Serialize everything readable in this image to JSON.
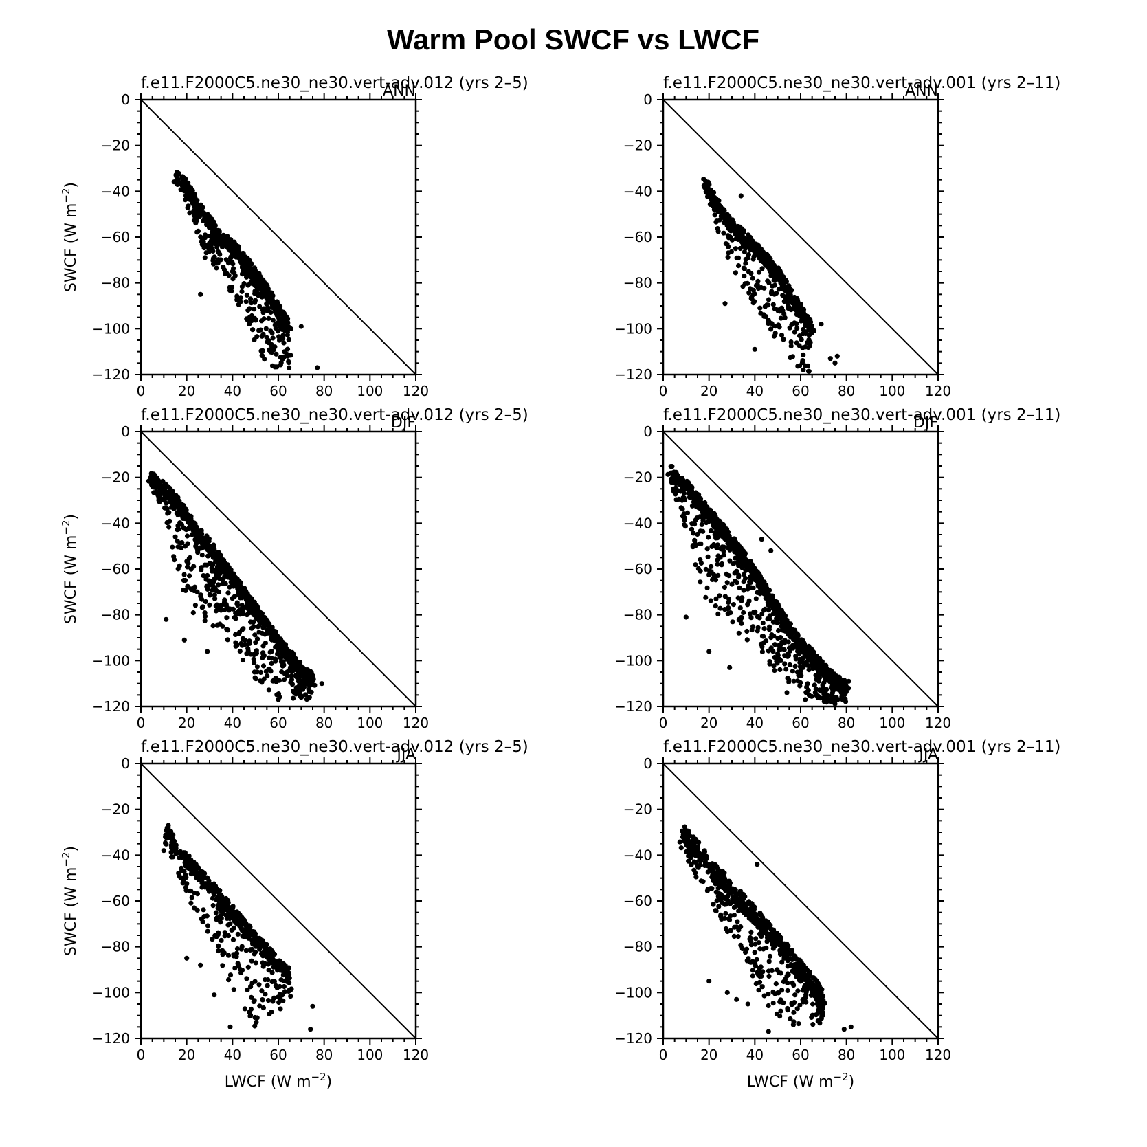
{
  "figure_title": "Warm Pool SWCF vs LWCF",
  "axis_labels": {
    "x": "LWCF (W m",
    "y": "SWCF (W m",
    "unit_exponent": "−2",
    "close": ")"
  },
  "chart_data": [
    {
      "type": "scatter",
      "title": "f.e11.F2000C5.ne30_ne30.vert-adv.012 (yrs 2–5)",
      "season": "ANN",
      "xlabel": "",
      "ylabel": "SWCF (W m−2)",
      "xlim": [
        0,
        120
      ],
      "ylim": [
        -120,
        0
      ],
      "x_ticks": [
        "0",
        "20",
        "40",
        "60",
        "80",
        "100",
        "120"
      ],
      "y_ticks": [
        "0",
        "−20",
        "−40",
        "−60",
        "−80",
        "−100",
        "−120"
      ],
      "reference_line": "y = -x",
      "cloud": {
        "spine": [
          [
            15,
            -33
          ],
          [
            20,
            -38
          ],
          [
            25,
            -47
          ],
          [
            30,
            -54
          ],
          [
            35,
            -60
          ],
          [
            40,
            -64
          ],
          [
            45,
            -70
          ],
          [
            50,
            -76
          ],
          [
            55,
            -84
          ],
          [
            60,
            -92
          ],
          [
            65,
            -100
          ]
        ],
        "below": [
          [
            15,
            3
          ],
          [
            20,
            8
          ],
          [
            25,
            14
          ],
          [
            30,
            16
          ],
          [
            35,
            18
          ],
          [
            40,
            22
          ],
          [
            45,
            26
          ],
          [
            50,
            30
          ],
          [
            55,
            32
          ],
          [
            60,
            28
          ],
          [
            65,
            20
          ]
        ],
        "above": 3,
        "count": 700
      },
      "outliers": [
        [
          26,
          -85
        ],
        [
          77,
          -117
        ],
        [
          70,
          -99
        ],
        [
          28,
          -69
        ]
      ]
    },
    {
      "type": "scatter",
      "title": "f.e11.F2000C5.ne30_ne30.vert-adv.001 (yrs 2–11)",
      "season": "ANN",
      "xlabel": "",
      "ylabel": "",
      "xlim": [
        0,
        120
      ],
      "ylim": [
        -120,
        0
      ],
      "x_ticks": [
        "0",
        "20",
        "40",
        "60",
        "80",
        "100",
        "120"
      ],
      "y_ticks": [
        "0",
        "−20",
        "−40",
        "−60",
        "−80",
        "−100",
        "−120"
      ],
      "reference_line": "y = -x",
      "cloud": {
        "spine": [
          [
            18,
            -36
          ],
          [
            22,
            -43
          ],
          [
            26,
            -50
          ],
          [
            30,
            -55
          ],
          [
            35,
            -60
          ],
          [
            40,
            -65
          ],
          [
            45,
            -70
          ],
          [
            50,
            -76
          ],
          [
            55,
            -84
          ],
          [
            60,
            -92
          ],
          [
            65,
            -100
          ]
        ],
        "below": [
          [
            18,
            3
          ],
          [
            22,
            8
          ],
          [
            26,
            14
          ],
          [
            30,
            18
          ],
          [
            35,
            22
          ],
          [
            40,
            26
          ],
          [
            45,
            28
          ],
          [
            50,
            30
          ],
          [
            55,
            30
          ],
          [
            60,
            26
          ],
          [
            65,
            20
          ]
        ],
        "above": 3,
        "count": 650
      },
      "outliers": [
        [
          27,
          -89
        ],
        [
          34,
          -42
        ],
        [
          40,
          -109
        ],
        [
          75,
          -115
        ],
        [
          76,
          -112
        ],
        [
          73,
          -113
        ],
        [
          69,
          -98
        ]
      ]
    },
    {
      "type": "scatter",
      "title": "f.e11.F2000C5.ne30_ne30.vert-adv.012 (yrs 2–5)",
      "season": "DJF",
      "xlabel": "",
      "ylabel": "SWCF (W m−2)",
      "xlim": [
        0,
        120
      ],
      "ylim": [
        -120,
        0
      ],
      "x_ticks": [
        "0",
        "20",
        "40",
        "60",
        "80",
        "100",
        "120"
      ],
      "y_ticks": [
        "0",
        "−20",
        "−40",
        "−60",
        "−80",
        "−100",
        "−120"
      ],
      "reference_line": "y = -x",
      "cloud": {
        "spine": [
          [
            4,
            -20
          ],
          [
            10,
            -25
          ],
          [
            15,
            -30
          ],
          [
            20,
            -37
          ],
          [
            25,
            -44
          ],
          [
            30,
            -50
          ],
          [
            35,
            -57
          ],
          [
            40,
            -64
          ],
          [
            45,
            -71
          ],
          [
            50,
            -78
          ],
          [
            55,
            -85
          ],
          [
            60,
            -92
          ],
          [
            65,
            -98
          ],
          [
            70,
            -104
          ],
          [
            75,
            -108
          ]
        ],
        "below": [
          [
            4,
            3
          ],
          [
            10,
            12
          ],
          [
            15,
            30
          ],
          [
            20,
            40
          ],
          [
            25,
            40
          ],
          [
            30,
            35
          ],
          [
            35,
            30
          ],
          [
            40,
            30
          ],
          [
            45,
            30
          ],
          [
            50,
            30
          ],
          [
            55,
            28
          ],
          [
            60,
            25
          ],
          [
            65,
            20
          ],
          [
            70,
            14
          ],
          [
            75,
            8
          ]
        ],
        "above": 3,
        "count": 1100
      },
      "outliers": [
        [
          11,
          -82
        ],
        [
          19,
          -91
        ],
        [
          29,
          -96
        ],
        [
          79,
          -110
        ],
        [
          60,
          -117
        ],
        [
          70,
          -116
        ]
      ]
    },
    {
      "type": "scatter",
      "title": "f.e11.F2000C5.ne30_ne30.vert-adv.001 (yrs 2–11)",
      "season": "DJF",
      "xlabel": "",
      "ylabel": "",
      "xlim": [
        0,
        120
      ],
      "ylim": [
        -120,
        0
      ],
      "x_ticks": [
        "0",
        "20",
        "40",
        "60",
        "80",
        "100",
        "120"
      ],
      "y_ticks": [
        "0",
        "−20",
        "−40",
        "−60",
        "−80",
        "−100",
        "−120"
      ],
      "reference_line": "y = -x",
      "cloud": {
        "spine": [
          [
            3,
            -17
          ],
          [
            10,
            -24
          ],
          [
            15,
            -30
          ],
          [
            20,
            -36
          ],
          [
            25,
            -42
          ],
          [
            30,
            -48
          ],
          [
            35,
            -55
          ],
          [
            40,
            -62
          ],
          [
            45,
            -70
          ],
          [
            50,
            -78
          ],
          [
            55,
            -86
          ],
          [
            60,
            -93
          ],
          [
            65,
            -98
          ],
          [
            70,
            -104
          ],
          [
            75,
            -109
          ],
          [
            80,
            -112
          ]
        ],
        "below": [
          [
            3,
            4
          ],
          [
            10,
            20
          ],
          [
            15,
            35
          ],
          [
            20,
            40
          ],
          [
            25,
            40
          ],
          [
            30,
            38
          ],
          [
            35,
            35
          ],
          [
            40,
            32
          ],
          [
            45,
            30
          ],
          [
            50,
            28
          ],
          [
            55,
            25
          ],
          [
            60,
            22
          ],
          [
            65,
            18
          ],
          [
            70,
            14
          ],
          [
            75,
            10
          ],
          [
            80,
            6
          ]
        ],
        "above": 3,
        "count": 1200
      },
      "outliers": [
        [
          10,
          -81
        ],
        [
          20,
          -96
        ],
        [
          29,
          -103
        ],
        [
          43,
          -47
        ],
        [
          47,
          -52
        ],
        [
          81,
          -109
        ],
        [
          62,
          -117
        ],
        [
          54,
          -114
        ]
      ]
    },
    {
      "type": "scatter",
      "title": "f.e11.F2000C5.ne30_ne30.vert-adv.012 (yrs 2–5)",
      "season": "JJA",
      "xlabel": "LWCF (W m−2)",
      "ylabel": "SWCF (W m−2)",
      "xlim": [
        0,
        120
      ],
      "ylim": [
        -120,
        0
      ],
      "x_ticks": [
        "0",
        "20",
        "40",
        "60",
        "80",
        "100",
        "120"
      ],
      "y_ticks": [
        "0",
        "−20",
        "−40",
        "−60",
        "−80",
        "−100",
        "−120"
      ],
      "reference_line": "y = -x",
      "cloud": {
        "spine": [
          [
            10,
            -33
          ],
          [
            12,
            -30
          ],
          [
            15,
            -36
          ],
          [
            20,
            -42
          ],
          [
            25,
            -48
          ],
          [
            30,
            -53
          ],
          [
            35,
            -59
          ],
          [
            40,
            -65
          ],
          [
            45,
            -71
          ],
          [
            50,
            -77
          ],
          [
            55,
            -82
          ],
          [
            60,
            -88
          ],
          [
            65,
            -92
          ]
        ],
        "below": [
          [
            10,
            5
          ],
          [
            12,
            8
          ],
          [
            15,
            10
          ],
          [
            20,
            15
          ],
          [
            25,
            20
          ],
          [
            30,
            24
          ],
          [
            35,
            28
          ],
          [
            40,
            34
          ],
          [
            45,
            38
          ],
          [
            50,
            38
          ],
          [
            55,
            30
          ],
          [
            60,
            24
          ],
          [
            65,
            18
          ]
        ],
        "above": 3,
        "count": 600
      },
      "outliers": [
        [
          10,
          -38
        ],
        [
          12,
          -27
        ],
        [
          20,
          -85
        ],
        [
          26,
          -88
        ],
        [
          32,
          -101
        ],
        [
          39,
          -115
        ],
        [
          74,
          -116
        ],
        [
          75,
          -106
        ]
      ]
    },
    {
      "type": "scatter",
      "title": "f.e11.F2000C5.ne30_ne30.vert-adv.001 (yrs 2–11)",
      "season": "JJA",
      "xlabel": "LWCF (W m−2)",
      "ylabel": "",
      "xlim": [
        0,
        120
      ],
      "ylim": [
        -120,
        0
      ],
      "x_ticks": [
        "0",
        "20",
        "40",
        "60",
        "80",
        "100",
        "120"
      ],
      "y_ticks": [
        "0",
        "−20",
        "−40",
        "−60",
        "−80",
        "−100",
        "−120"
      ],
      "reference_line": "y = -x",
      "cloud": {
        "spine": [
          [
            8,
            -29
          ],
          [
            12,
            -34
          ],
          [
            16,
            -39
          ],
          [
            20,
            -44
          ],
          [
            25,
            -50
          ],
          [
            30,
            -55
          ],
          [
            35,
            -61
          ],
          [
            40,
            -66
          ],
          [
            45,
            -72
          ],
          [
            50,
            -78
          ],
          [
            55,
            -84
          ],
          [
            60,
            -90
          ],
          [
            65,
            -96
          ],
          [
            70,
            -103
          ]
        ],
        "below": [
          [
            8,
            8
          ],
          [
            12,
            12
          ],
          [
            16,
            14
          ],
          [
            20,
            16
          ],
          [
            25,
            18
          ],
          [
            30,
            22
          ],
          [
            35,
            26
          ],
          [
            40,
            30
          ],
          [
            45,
            34
          ],
          [
            50,
            34
          ],
          [
            55,
            30
          ],
          [
            60,
            26
          ],
          [
            65,
            18
          ],
          [
            70,
            10
          ]
        ],
        "above": 4,
        "count": 750
      },
      "outliers": [
        [
          20,
          -95
        ],
        [
          28,
          -100
        ],
        [
          32,
          -103
        ],
        [
          41,
          -44
        ],
        [
          79,
          -116
        ],
        [
          82,
          -115
        ],
        [
          46,
          -117
        ],
        [
          37,
          -105
        ]
      ]
    }
  ]
}
